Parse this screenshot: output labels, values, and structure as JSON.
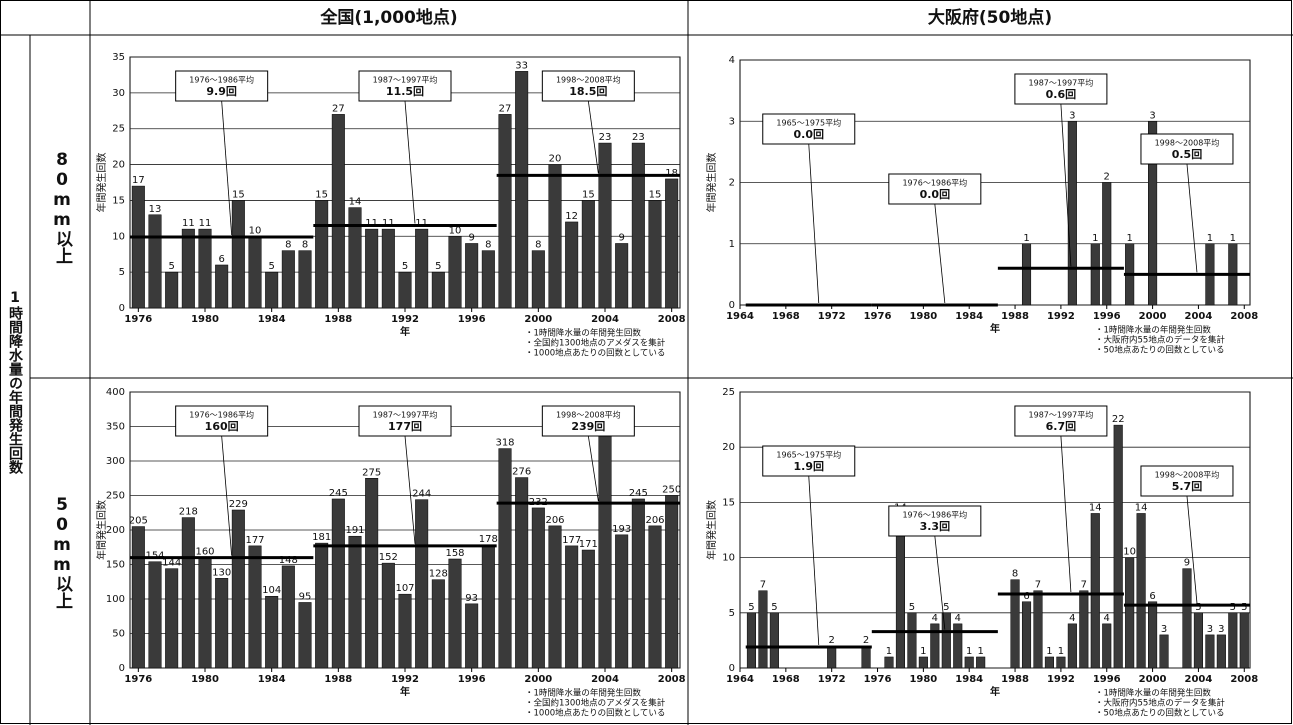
{
  "table": {
    "col_headers": [
      "全国(1,000地点)",
      "大阪府(50地点)"
    ],
    "row_group": "1時間降水量の年間発生回数",
    "row_headers": [
      "80mm以上",
      "50mm以上"
    ]
  },
  "chart_data": [
    {
      "type": "bar",
      "color": "#3a3a3a",
      "grid": true,
      "ylabel": "年間発生回数",
      "xlabel": "年",
      "x": [
        1976,
        1977,
        1978,
        1979,
        1980,
        1981,
        1982,
        1983,
        1984,
        1985,
        1986,
        1987,
        1988,
        1989,
        1990,
        1991,
        1992,
        1993,
        1994,
        1995,
        1996,
        1997,
        1998,
        1999,
        2000,
        2001,
        2002,
        2003,
        2004,
        2005,
        2006,
        2007,
        2008
      ],
      "values": [
        17,
        13,
        5,
        11,
        11,
        6,
        15,
        10,
        5,
        8,
        8,
        15,
        27,
        14,
        11,
        11,
        5,
        11,
        5,
        10,
        9,
        8,
        27,
        33,
        8,
        20,
        12,
        15,
        23,
        9,
        23,
        15,
        18
      ],
      "xlim": [
        1975.5,
        2008.5
      ],
      "xticks": [
        1976,
        1980,
        1984,
        1988,
        1992,
        1996,
        2000,
        2004,
        2008
      ],
      "ylim": [
        0,
        35
      ],
      "yticks": [
        0,
        5,
        10,
        15,
        20,
        25,
        30,
        35
      ],
      "annotations": [
        {
          "label": "1976～1986平均",
          "value": 9.9,
          "value_label": "9.9回",
          "start": 1976,
          "end": 1986
        },
        {
          "label": "1987～1997平均",
          "value": 11.5,
          "value_label": "11.5回",
          "start": 1987,
          "end": 1997
        },
        {
          "label": "1998～2008平均",
          "value": 18.5,
          "value_label": "18.5回",
          "start": 1998,
          "end": 2008
        }
      ],
      "notes": [
        "・1時間降水量の年間発生回数",
        "・全国約1300地点のアメダスを集計",
        "・1000地点あたりの回数としている"
      ]
    },
    {
      "type": "bar",
      "color": "#3a3a3a",
      "grid": true,
      "ylabel": "年間発生回数",
      "xlabel": "年",
      "x": [
        1976,
        1977,
        1978,
        1979,
        1980,
        1981,
        1982,
        1983,
        1984,
        1985,
        1986,
        1987,
        1988,
        1989,
        1990,
        1991,
        1992,
        1993,
        1994,
        1995,
        1996,
        1997,
        1998,
        1999,
        2000,
        2001,
        2002,
        2003,
        2004,
        2005,
        2006,
        2007,
        2008
      ],
      "values": [
        205,
        154,
        144,
        218,
        160,
        130,
        229,
        177,
        104,
        148,
        95,
        181,
        245,
        191,
        275,
        152,
        107,
        244,
        128,
        158,
        93,
        178,
        318,
        276,
        232,
        206,
        177,
        171,
        354,
        193,
        245,
        206,
        250
      ],
      "xlim": [
        1975.5,
        2008.5
      ],
      "xticks": [
        1976,
        1980,
        1984,
        1988,
        1992,
        1996,
        2000,
        2004,
        2008
      ],
      "ylim": [
        0,
        400
      ],
      "yticks": [
        0,
        50,
        100,
        150,
        200,
        250,
        300,
        350,
        400
      ],
      "annotations": [
        {
          "label": "1976～1986平均",
          "value": 160,
          "value_label": "160回",
          "start": 1976,
          "end": 1986
        },
        {
          "label": "1987～1997平均",
          "value": 177,
          "value_label": "177回",
          "start": 1987,
          "end": 1997
        },
        {
          "label": "1998～2008平均",
          "value": 239,
          "value_label": "239回",
          "start": 1998,
          "end": 2008
        }
      ],
      "notes": [
        "・1時間降水量の年間発生回数",
        "・全国約1300地点のアメダスを集計",
        "・1000地点あたりの回数としている"
      ]
    },
    {
      "type": "bar",
      "color": "#3a3a3a",
      "grid": true,
      "ylabel": "年間発生回数",
      "xlabel": "年",
      "x": [
        1965,
        1966,
        1967,
        1968,
        1969,
        1970,
        1971,
        1972,
        1973,
        1974,
        1975,
        1976,
        1977,
        1978,
        1979,
        1980,
        1981,
        1982,
        1983,
        1984,
        1985,
        1986,
        1987,
        1988,
        1989,
        1990,
        1991,
        1992,
        1993,
        1994,
        1995,
        1996,
        1997,
        1998,
        1999,
        2000,
        2001,
        2002,
        2003,
        2004,
        2005,
        2006,
        2007,
        2008
      ],
      "values": [
        0,
        0,
        0,
        0,
        0,
        0,
        0,
        0,
        0,
        0,
        0,
        0,
        0,
        0,
        0,
        0,
        0,
        0,
        0,
        0,
        0,
        0,
        0,
        0,
        1,
        0,
        0,
        0,
        3,
        0,
        1,
        2,
        0,
        1,
        0,
        3,
        0,
        0,
        0,
        0,
        1,
        0,
        1,
        0
      ],
      "xlim": [
        1964,
        2008.5
      ],
      "xticks": [
        1964,
        1968,
        1972,
        1976,
        1980,
        1984,
        1988,
        1992,
        1996,
        2000,
        2004,
        2008
      ],
      "ylim": [
        0,
        4
      ],
      "yticks": [
        0,
        1,
        2,
        3,
        4
      ],
      "annotations": [
        {
          "label": "1965～1975平均",
          "value": 0.0,
          "value_label": "0.0回",
          "start": 1965,
          "end": 1975
        },
        {
          "label": "1976～1986平均",
          "value": 0.0,
          "value_label": "0.0回",
          "start": 1976,
          "end": 1986
        },
        {
          "label": "1987～1997平均",
          "value": 0.6,
          "value_label": "0.6回",
          "start": 1987,
          "end": 1997
        },
        {
          "label": "1998～2008平均",
          "value": 0.5,
          "value_label": "0.5回",
          "start": 1998,
          "end": 2008
        }
      ],
      "notes": [
        "・1時間降水量の年間発生回数",
        "・大阪府内55地点のデータを集計",
        "・50地点あたりの回数としている"
      ]
    },
    {
      "type": "bar",
      "color": "#3a3a3a",
      "grid": true,
      "ylabel": "年間発生回数",
      "xlabel": "年",
      "x": [
        1965,
        1966,
        1967,
        1968,
        1969,
        1970,
        1971,
        1972,
        1973,
        1974,
        1975,
        1976,
        1977,
        1978,
        1979,
        1980,
        1981,
        1982,
        1983,
        1984,
        1985,
        1986,
        1987,
        1988,
        1989,
        1990,
        1991,
        1992,
        1993,
        1994,
        1995,
        1996,
        1997,
        1998,
        1999,
        2000,
        2001,
        2002,
        2003,
        2004,
        2005,
        2006,
        2007,
        2008
      ],
      "values": [
        5,
        7,
        5,
        0,
        0,
        0,
        0,
        2,
        0,
        0,
        2,
        0,
        1,
        14,
        5,
        1,
        4,
        5,
        4,
        1,
        1,
        0,
        0,
        8,
        6,
        7,
        1,
        1,
        4,
        7,
        14,
        4,
        22,
        10,
        14,
        6,
        3,
        0,
        9,
        5,
        3,
        3,
        5,
        5
      ],
      "xlim": [
        1964,
        2008.5
      ],
      "xticks": [
        1964,
        1968,
        1972,
        1976,
        1980,
        1984,
        1988,
        1992,
        1996,
        2000,
        2004,
        2008
      ],
      "ylim": [
        0,
        25
      ],
      "yticks": [
        0,
        5,
        10,
        15,
        20,
        25
      ],
      "annotations": [
        {
          "label": "1965～1975平均",
          "value": 1.9,
          "value_label": "1.9回",
          "start": 1965,
          "end": 1975
        },
        {
          "label": "1976～1986平均",
          "value": 3.3,
          "value_label": "3.3回",
          "start": 1976,
          "end": 1986
        },
        {
          "label": "1987～1997平均",
          "value": 6.7,
          "value_label": "6.7回",
          "start": 1987,
          "end": 1997
        },
        {
          "label": "1998～2008平均",
          "value": 5.7,
          "value_label": "5.7回",
          "start": 1998,
          "end": 2008
        }
      ],
      "notes": [
        "・1時間降水量の年間発生回数",
        "・大阪府内55地点のデータを集計",
        "・50地点あたりの回数としている"
      ]
    }
  ]
}
